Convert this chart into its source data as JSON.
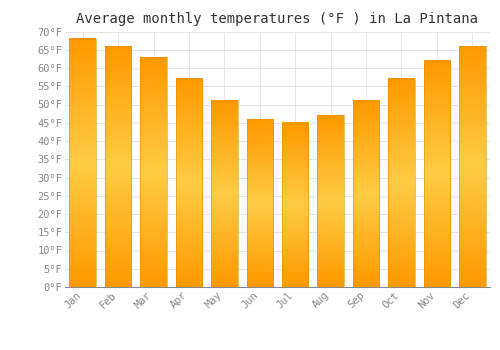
{
  "title": "Average monthly temperatures (°F ) in La Pintana",
  "months": [
    "Jan",
    "Feb",
    "Mar",
    "Apr",
    "May",
    "Jun",
    "Jul",
    "Aug",
    "Sep",
    "Oct",
    "Nov",
    "Dec"
  ],
  "values": [
    68,
    66,
    63,
    57,
    51,
    46,
    45,
    47,
    51,
    57,
    62,
    66
  ],
  "bar_color_top": "#FFBB33",
  "bar_color_mid": "#FFA500",
  "bar_edge_color": "#E09000",
  "background_color": "#FFFFFF",
  "grid_color": "#E0E0E0",
  "ylim": [
    0,
    70
  ],
  "yticks": [
    0,
    5,
    10,
    15,
    20,
    25,
    30,
    35,
    40,
    45,
    50,
    55,
    60,
    65,
    70
  ],
  "title_fontsize": 10,
  "tick_fontsize": 7.5,
  "bar_width": 0.75,
  "figsize": [
    5.0,
    3.5
  ],
  "dpi": 100
}
